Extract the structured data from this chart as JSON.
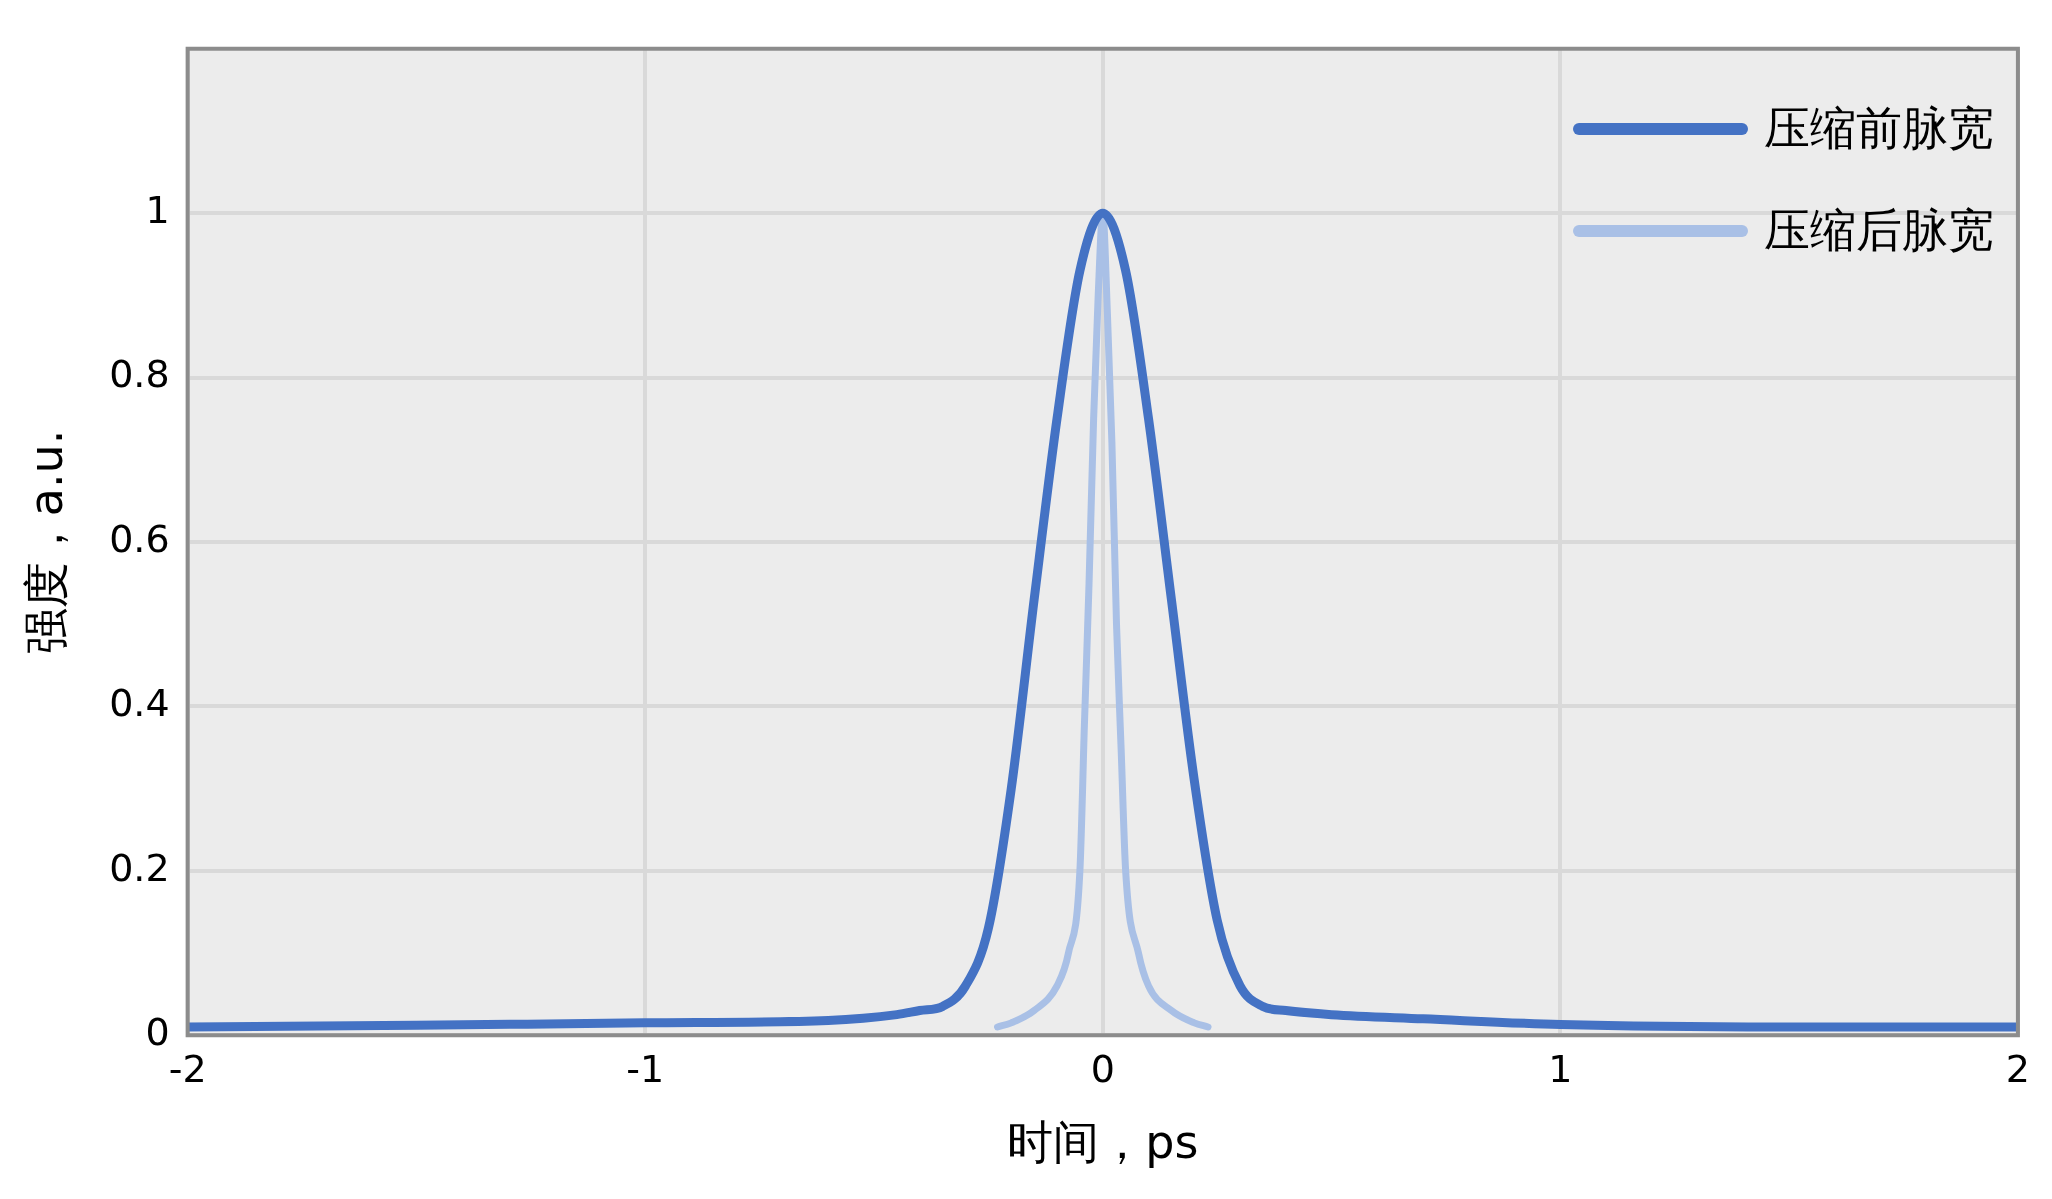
{
  "chart_data": {
    "type": "line",
    "xlabel": "时间，ps",
    "ylabel": "强度，a.u.",
    "xlim": [
      -2,
      2
    ],
    "xticks": [
      -2,
      -1,
      0,
      1,
      2
    ],
    "ylim": [
      0,
      1.2
    ],
    "yticks": [
      0,
      0.2,
      0.4,
      0.6,
      0.8,
      1
    ],
    "grid": true,
    "legend": "top right",
    "marker": "none",
    "line_style": "solid",
    "series": [
      {
        "name": "压缩前脉宽",
        "color": "#4472c4",
        "x": [
          -2,
          -1.5,
          -1,
          -0.6,
          -0.45,
          -0.4,
          -0.35,
          -0.3,
          -0.25,
          -0.2,
          -0.15,
          -0.1,
          -0.05,
          0,
          0.05,
          0.1,
          0.15,
          0.2,
          0.25,
          0.3,
          0.35,
          0.4,
          0.5,
          0.7,
          1,
          1.5,
          2
        ],
        "values": [
          0.01,
          0.012,
          0.015,
          0.018,
          0.025,
          0.03,
          0.035,
          0.06,
          0.13,
          0.3,
          0.53,
          0.75,
          0.93,
          1,
          0.93,
          0.75,
          0.53,
          0.31,
          0.14,
          0.06,
          0.035,
          0.03,
          0.025,
          0.02,
          0.013,
          0.01,
          0.01
        ]
      },
      {
        "name": "压缩后脉宽",
        "color": "#a9c0e6",
        "x": [
          -0.23,
          -0.2,
          -0.15,
          -0.1,
          -0.075,
          -0.05,
          -0.04,
          -0.03,
          -0.02,
          -0.01,
          0,
          0.01,
          0.02,
          0.03,
          0.04,
          0.05,
          0.078,
          0.1,
          0.15,
          0.2,
          0.23
        ],
        "values": [
          0.01,
          0.015,
          0.03,
          0.06,
          0.1,
          0.2,
          0.38,
          0.55,
          0.75,
          0.9,
          1,
          0.88,
          0.72,
          0.5,
          0.35,
          0.2,
          0.1,
          0.06,
          0.03,
          0.015,
          0.01
        ]
      }
    ]
  }
}
